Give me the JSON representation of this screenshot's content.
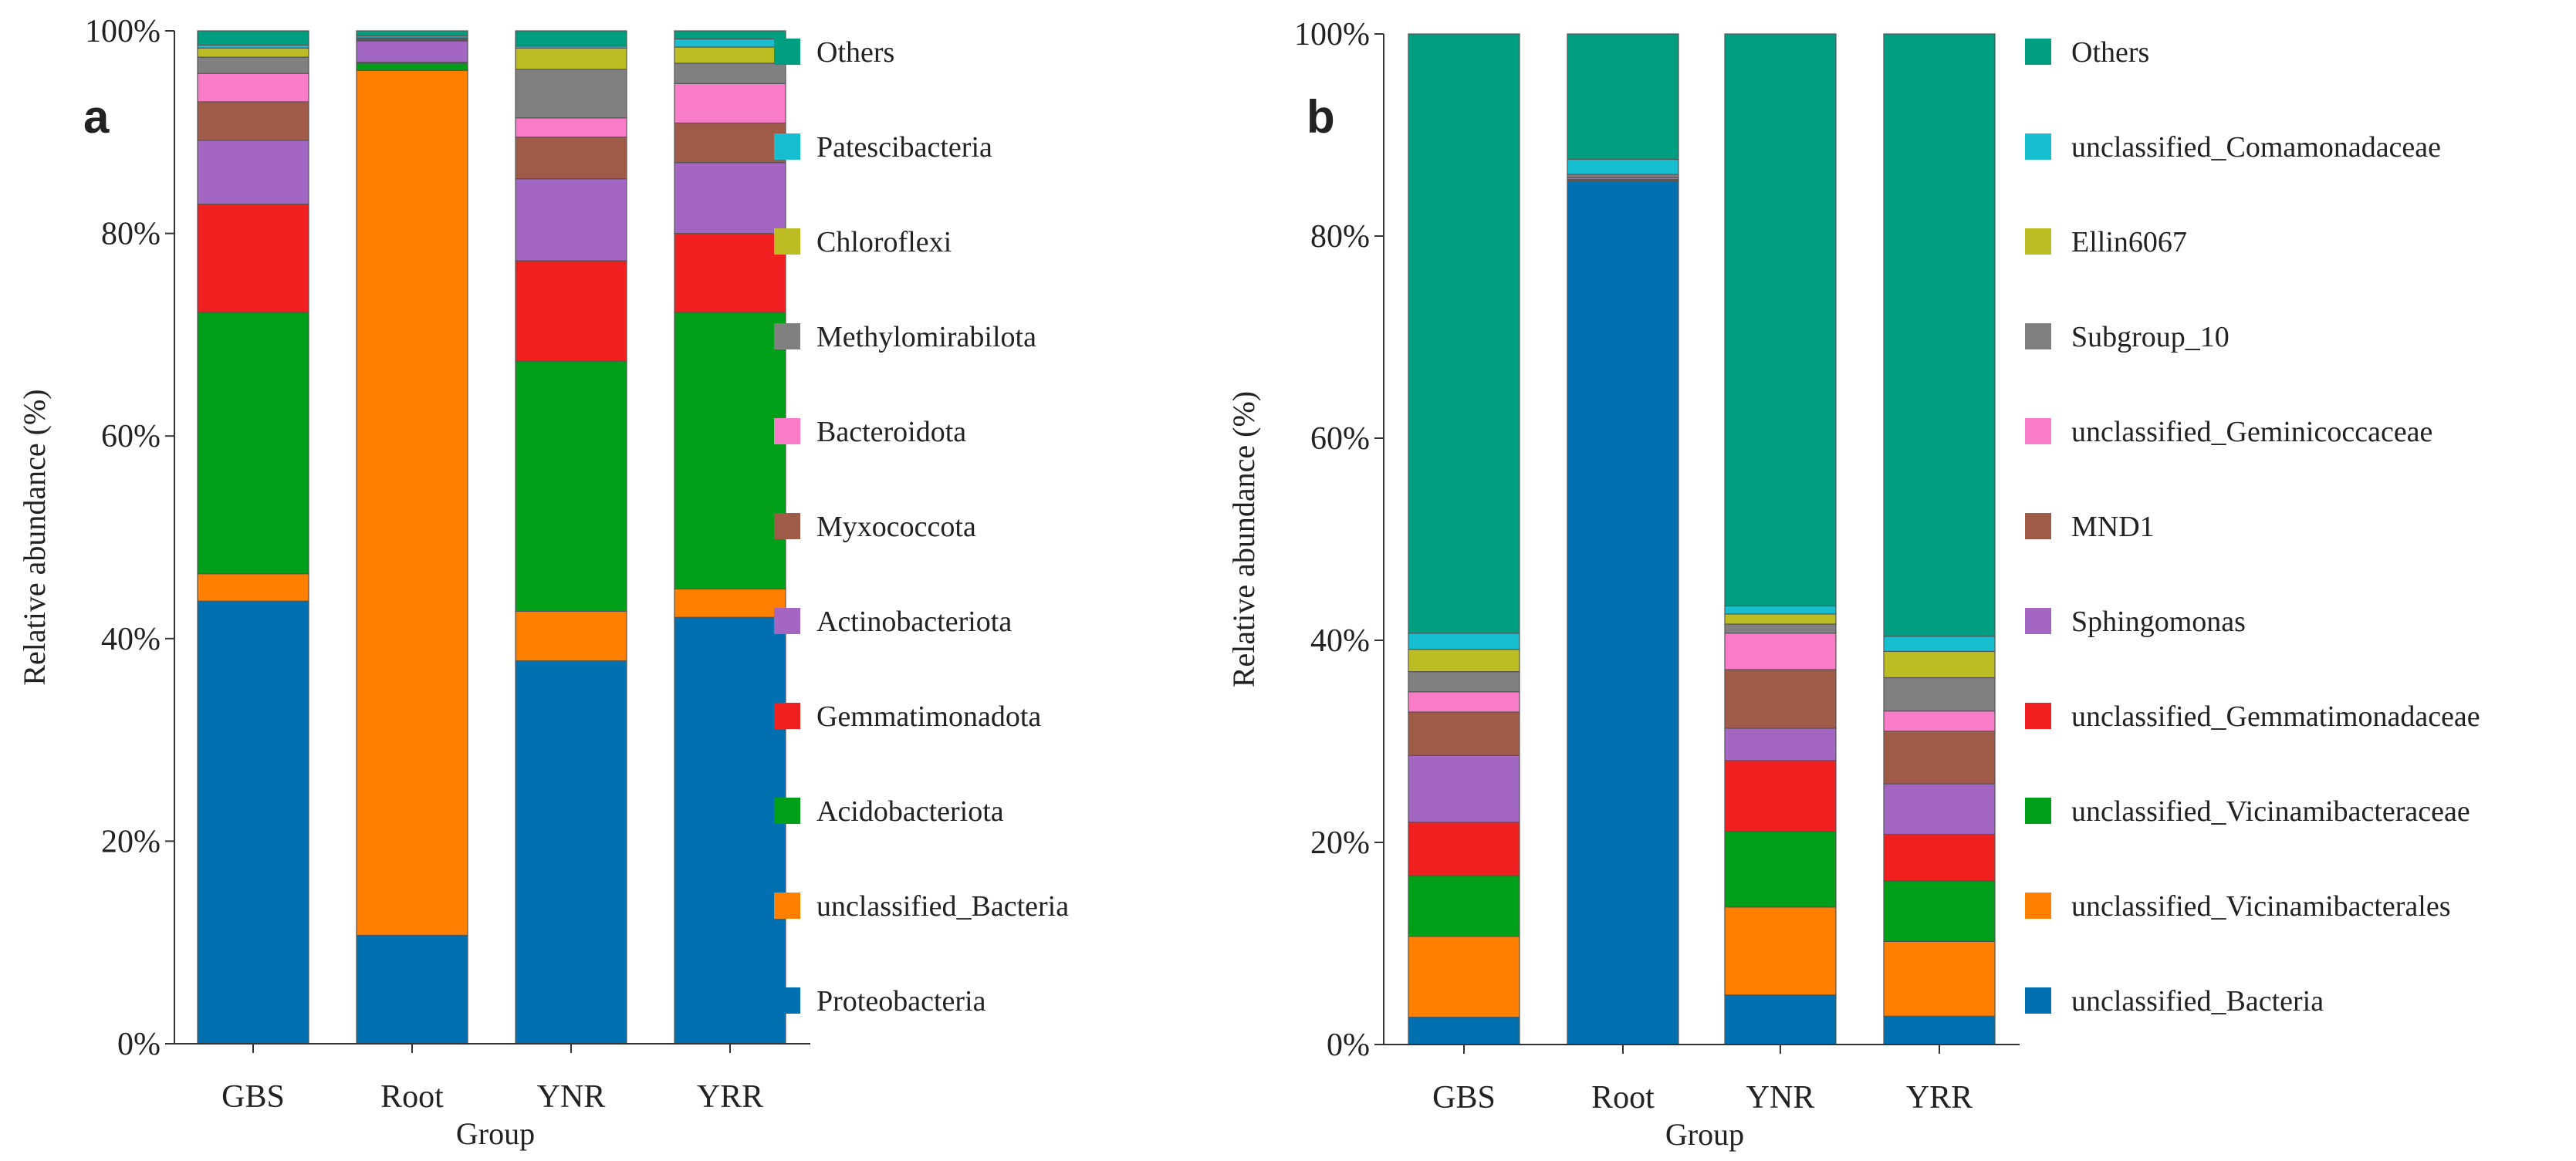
{
  "chart_data": [
    {
      "type": "bar",
      "stacked": true,
      "normalized": true,
      "panel_label": "a",
      "xlabel": "Group",
      "ylabel": "Relative abundance (%)",
      "ylim": [
        0,
        100
      ],
      "yticks": [
        "0%",
        "20%",
        "40%",
        "60%",
        "80%",
        "100%"
      ],
      "categories": [
        "GBS",
        "Root",
        "YNR",
        "YRR"
      ],
      "legend_position": "right",
      "series": [
        {
          "name": "Proteobacteria",
          "color": "#0070B0",
          "values": [
            43.7,
            10.7,
            37.8,
            42.1
          ]
        },
        {
          "name": "unclassified_Bacteria",
          "color": "#FF8000",
          "values": [
            2.7,
            85.4,
            4.9,
            2.8
          ]
        },
        {
          "name": "Acidobacteriota",
          "color": "#009F1A",
          "values": [
            25.8,
            0.7,
            24.7,
            27.3
          ]
        },
        {
          "name": "Gemmatimonadota",
          "color": "#F02020",
          "values": [
            10.7,
            0.1,
            9.9,
            7.8
          ]
        },
        {
          "name": "Actinobacteriota",
          "color": "#A366C2",
          "values": [
            6.3,
            2.1,
            8.1,
            7.0
          ]
        },
        {
          "name": "Myxococcota",
          "color": "#A05A48",
          "values": [
            3.8,
            0.1,
            4.1,
            3.9
          ]
        },
        {
          "name": "Bacteroidota",
          "color": "#F87CC8",
          "values": [
            2.8,
            0.0,
            1.9,
            3.9
          ]
        },
        {
          "name": "Methylomirabilota",
          "color": "#808080",
          "values": [
            1.6,
            0.1,
            4.8,
            2.0
          ]
        },
        {
          "name": "Chloroflexi",
          "color": "#BCBD22",
          "values": [
            0.9,
            0.1,
            2.1,
            1.6
          ]
        },
        {
          "name": "Patescibacteria",
          "color": "#17BECF",
          "values": [
            0.3,
            0.2,
            0.2,
            0.8
          ]
        },
        {
          "name": "Others",
          "color": "#009E80",
          "values": [
            1.4,
            0.5,
            1.5,
            0.8
          ]
        }
      ]
    },
    {
      "type": "bar",
      "stacked": true,
      "normalized": true,
      "panel_label": "b",
      "xlabel": "Group",
      "ylabel": "Relative abundance (%)",
      "ylim": [
        0,
        100
      ],
      "yticks": [
        "0%",
        "20%",
        "40%",
        "60%",
        "80%",
        "100%"
      ],
      "categories": [
        "GBS",
        "Root",
        "YNR",
        "YRR"
      ],
      "legend_position": "right",
      "series": [
        {
          "name": "unclassified_Bacteria",
          "color": "#0070B0",
          "values": [
            2.7,
            85.4,
            4.9,
            2.8
          ]
        },
        {
          "name": "unclassified_Vicinamibacterales",
          "color": "#FF8000",
          "values": [
            8.0,
            0.1,
            8.7,
            7.4
          ]
        },
        {
          "name": "unclassified_Vicinamibacteraceae",
          "color": "#009F1A",
          "values": [
            6.0,
            0.1,
            7.5,
            6.0
          ]
        },
        {
          "name": "unclassified_Gemmatimonadaceae",
          "color": "#F02020",
          "values": [
            5.3,
            0.0,
            7.0,
            4.6
          ]
        },
        {
          "name": "Sphingomonas",
          "color": "#A366C2",
          "values": [
            6.6,
            0.2,
            3.2,
            5.0
          ]
        },
        {
          "name": "MND1",
          "color": "#A05A48",
          "values": [
            4.3,
            0.0,
            5.8,
            5.2
          ]
        },
        {
          "name": "unclassified_Geminicoccaceae",
          "color": "#F87CC8",
          "values": [
            2.0,
            0.0,
            3.6,
            2.0
          ]
        },
        {
          "name": "Subgroup_10",
          "color": "#808080",
          "values": [
            2.0,
            0.3,
            0.9,
            3.3
          ]
        },
        {
          "name": "Ellin6067",
          "color": "#BCBD22",
          "values": [
            2.2,
            0.0,
            1.0,
            2.6
          ]
        },
        {
          "name": "unclassified_Comamonadaceae",
          "color": "#17BECF",
          "values": [
            1.6,
            1.5,
            0.8,
            1.5
          ]
        },
        {
          "name": "Others",
          "color": "#009E80",
          "values": [
            59.3,
            12.4,
            56.6,
            59.6
          ]
        }
      ]
    }
  ]
}
